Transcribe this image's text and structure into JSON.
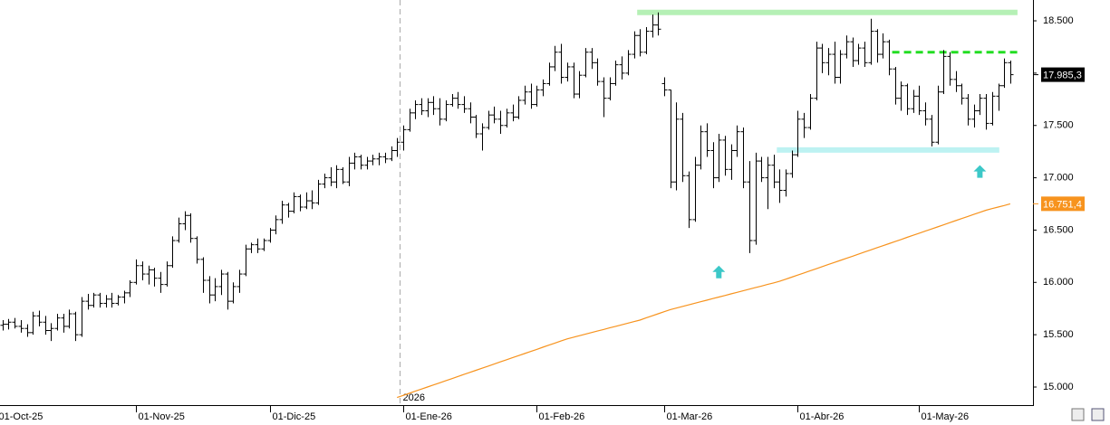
{
  "chart_data": {
    "type": "ohlc",
    "bar_color": "#000000",
    "categories": [
      "01-Oct-25",
      null,
      null,
      null,
      null,
      null,
      null,
      null,
      null,
      null,
      null,
      null,
      null,
      null,
      null,
      null,
      null,
      null,
      null,
      null,
      null,
      null,
      null,
      "01-Nov-25",
      null,
      null,
      null,
      null,
      null,
      null,
      null,
      null,
      null,
      null,
      null,
      null,
      null,
      null,
      null,
      null,
      null,
      null,
      null,
      null,
      null,
      "01-Dic-25",
      null,
      null,
      null,
      null,
      null,
      null,
      null,
      null,
      null,
      null,
      null,
      null,
      null,
      null,
      null,
      null,
      null,
      null,
      null,
      null,
      null,
      "01-Ene-26",
      null,
      null,
      null,
      null,
      null,
      null,
      null,
      null,
      null,
      null,
      null,
      null,
      null,
      null,
      null,
      null,
      null,
      null,
      null,
      null,
      null,
      "01-Feb-26",
      null,
      null,
      null,
      null,
      null,
      null,
      null,
      null,
      null,
      null,
      null,
      null,
      null,
      null,
      null,
      null,
      null,
      null,
      null,
      null,
      "01-Mar-26",
      null,
      null,
      null,
      null,
      null,
      null,
      null,
      null,
      null,
      null,
      null,
      null,
      null,
      null,
      null,
      null,
      null,
      null,
      null,
      null,
      null,
      "01-Abr-26",
      null,
      null,
      null,
      null,
      null,
      null,
      null,
      null,
      null,
      null,
      null,
      null,
      null,
      null,
      null,
      null,
      null,
      null,
      null,
      "01-May-26",
      null,
      null,
      null,
      null,
      null,
      null,
      null,
      null,
      null,
      null,
      null,
      null,
      null,
      null,
      null
    ],
    "ohlc": [
      [
        15560,
        15620,
        15510,
        15590
      ],
      [
        15590,
        15640,
        15540,
        15600
      ],
      [
        15600,
        15650,
        15550,
        15620
      ],
      [
        15620,
        15660,
        15560,
        15580
      ],
      [
        15580,
        15640,
        15520,
        15560
      ],
      [
        15560,
        15600,
        15480,
        15520
      ],
      [
        15520,
        15720,
        15500,
        15680
      ],
      [
        15680,
        15730,
        15580,
        15620
      ],
      [
        15620,
        15680,
        15500,
        15540
      ],
      [
        15540,
        15610,
        15440,
        15560
      ],
      [
        15560,
        15700,
        15540,
        15660
      ],
      [
        15660,
        15700,
        15520,
        15580
      ],
      [
        15580,
        15740,
        15560,
        15700
      ],
      [
        15700,
        15720,
        15440,
        15500
      ],
      [
        15500,
        15860,
        15480,
        15820
      ],
      [
        15820,
        15890,
        15740,
        15780
      ],
      [
        15780,
        15900,
        15760,
        15880
      ],
      [
        15880,
        15900,
        15760,
        15800
      ],
      [
        15800,
        15880,
        15760,
        15840
      ],
      [
        15840,
        15900,
        15760,
        15800
      ],
      [
        15800,
        15880,
        15780,
        15860
      ],
      [
        15860,
        15920,
        15800,
        15900
      ],
      [
        15900,
        16020,
        15860,
        16000
      ],
      [
        16000,
        16220,
        15980,
        16160
      ],
      [
        16160,
        16200,
        16020,
        16080
      ],
      [
        16080,
        16160,
        15980,
        16120
      ],
      [
        16120,
        16140,
        15960,
        16040
      ],
      [
        16040,
        16100,
        15900,
        15980
      ],
      [
        15980,
        16200,
        15960,
        16160
      ],
      [
        16160,
        16440,
        16140,
        16400
      ],
      [
        16400,
        16620,
        16380,
        16560
      ],
      [
        16560,
        16680,
        16500,
        16640
      ],
      [
        16640,
        16660,
        16380,
        16420
      ],
      [
        16420,
        16440,
        16180,
        16220
      ],
      [
        16220,
        16240,
        15900,
        16020
      ],
      [
        16020,
        16060,
        15800,
        15880
      ],
      [
        15880,
        16040,
        15820,
        15960
      ],
      [
        15960,
        16120,
        15880,
        16080
      ],
      [
        16080,
        16100,
        15740,
        15820
      ],
      [
        15820,
        16000,
        15800,
        15960
      ],
      [
        15960,
        16120,
        15900,
        16080
      ],
      [
        16080,
        16360,
        16060,
        16320
      ],
      [
        16320,
        16380,
        16280,
        16360
      ],
      [
        16360,
        16420,
        16280,
        16320
      ],
      [
        16320,
        16420,
        16300,
        16400
      ],
      [
        16400,
        16520,
        16380,
        16500
      ],
      [
        16500,
        16640,
        16460,
        16600
      ],
      [
        16600,
        16780,
        16560,
        16740
      ],
      [
        16740,
        16760,
        16620,
        16680
      ],
      [
        16680,
        16860,
        16660,
        16820
      ],
      [
        16820,
        16840,
        16680,
        16720
      ],
      [
        16720,
        16860,
        16700,
        16780
      ],
      [
        16780,
        16880,
        16700,
        16760
      ],
      [
        16760,
        16980,
        16740,
        16940
      ],
      [
        16940,
        17040,
        16900,
        17000
      ],
      [
        17000,
        17100,
        16920,
        16960
      ],
      [
        16960,
        17120,
        16900,
        17080
      ],
      [
        17080,
        17100,
        16940,
        16960
      ],
      [
        16960,
        17200,
        16920,
        17140
      ],
      [
        17140,
        17240,
        17080,
        17200
      ],
      [
        17200,
        17220,
        17080,
        17120
      ],
      [
        17120,
        17200,
        17080,
        17160
      ],
      [
        17160,
        17220,
        17120,
        17180
      ],
      [
        17180,
        17240,
        17120,
        17200
      ],
      [
        17200,
        17240,
        17140,
        17180
      ],
      [
        17180,
        17300,
        17160,
        17260
      ],
      [
        17260,
        17380,
        17200,
        17340
      ],
      [
        17340,
        17500,
        17260,
        17460
      ],
      [
        17460,
        17660,
        17440,
        17620
      ],
      [
        17620,
        17740,
        17560,
        17700
      ],
      [
        17700,
        17760,
        17600,
        17640
      ],
      [
        17640,
        17760,
        17580,
        17720
      ],
      [
        17720,
        17780,
        17600,
        17660
      ],
      [
        17660,
        17760,
        17500,
        17560
      ],
      [
        17560,
        17740,
        17540,
        17700
      ],
      [
        17700,
        17800,
        17680,
        17760
      ],
      [
        17760,
        17820,
        17660,
        17700
      ],
      [
        17700,
        17780,
        17620,
        17660
      ],
      [
        17660,
        17720,
        17520,
        17580
      ],
      [
        17580,
        17600,
        17380,
        17420
      ],
      [
        17420,
        17520,
        17260,
        17480
      ],
      [
        17480,
        17640,
        17460,
        17600
      ],
      [
        17600,
        17680,
        17520,
        17560
      ],
      [
        17560,
        17640,
        17420,
        17500
      ],
      [
        17500,
        17660,
        17480,
        17620
      ],
      [
        17620,
        17700,
        17540,
        17580
      ],
      [
        17580,
        17780,
        17560,
        17740
      ],
      [
        17740,
        17880,
        17700,
        17820
      ],
      [
        17820,
        17900,
        17660,
        17700
      ],
      [
        17700,
        17880,
        17680,
        17840
      ],
      [
        17840,
        17940,
        17780,
        17900
      ],
      [
        17900,
        18100,
        17880,
        18060
      ],
      [
        18060,
        18260,
        18020,
        18200
      ],
      [
        18200,
        18280,
        17900,
        17960
      ],
      [
        17960,
        18100,
        17920,
        18060
      ],
      [
        18060,
        18100,
        17760,
        17800
      ],
      [
        17800,
        18020,
        17760,
        17980
      ],
      [
        17980,
        18240,
        17960,
        18200
      ],
      [
        18200,
        18240,
        18040,
        18100
      ],
      [
        18100,
        18140,
        17880,
        17920
      ],
      [
        17920,
        17960,
        17580,
        17760
      ],
      [
        17760,
        17960,
        17740,
        17900
      ],
      [
        17900,
        18120,
        17880,
        18080
      ],
      [
        18080,
        18160,
        17940,
        18000
      ],
      [
        18000,
        18220,
        17980,
        18180
      ],
      [
        18180,
        18400,
        18140,
        18360
      ],
      [
        18360,
        18420,
        18160,
        18200
      ],
      [
        18200,
        18440,
        18180,
        18400
      ],
      [
        18400,
        18560,
        18340,
        18460
      ],
      [
        18460,
        18580,
        18360,
        18420
      ],
      [
        17900,
        17960,
        17780,
        17840
      ],
      [
        17840,
        17840,
        16900,
        16960
      ],
      [
        16960,
        17720,
        16880,
        17560
      ],
      [
        17560,
        17620,
        16960,
        17020
      ],
      [
        17020,
        17060,
        16520,
        16600
      ],
      [
        16600,
        17200,
        16580,
        17120
      ],
      [
        17120,
        17500,
        17080,
        17440
      ],
      [
        17440,
        17520,
        17200,
        17260
      ],
      [
        17260,
        17340,
        16900,
        17000
      ],
      [
        17000,
        17420,
        16960,
        17360
      ],
      [
        17360,
        17400,
        17020,
        17080
      ],
      [
        17080,
        17320,
        16980,
        17260
      ],
      [
        17260,
        17500,
        17200,
        17440
      ],
      [
        17440,
        17480,
        16900,
        16960
      ],
      [
        16960,
        17160,
        16280,
        16400
      ],
      [
        16400,
        17240,
        16360,
        17160
      ],
      [
        17160,
        17200,
        16960,
        17000
      ],
      [
        17000,
        17200,
        16700,
        17120
      ],
      [
        17120,
        17220,
        16900,
        16960
      ],
      [
        16960,
        17080,
        16760,
        16880
      ],
      [
        16880,
        17080,
        16820,
        17040
      ],
      [
        17040,
        17260,
        17000,
        17220
      ],
      [
        17220,
        17640,
        17200,
        17560
      ],
      [
        17560,
        17620,
        17380,
        17480
      ],
      [
        17480,
        17800,
        17460,
        17760
      ],
      [
        17760,
        18300,
        17740,
        18240
      ],
      [
        18240,
        18280,
        18000,
        18100
      ],
      [
        18100,
        18240,
        17980,
        18180
      ],
      [
        18180,
        18300,
        17900,
        17960
      ],
      [
        17960,
        18220,
        17900,
        18180
      ],
      [
        18180,
        18360,
        18140,
        18300
      ],
      [
        18300,
        18340,
        18060,
        18120
      ],
      [
        18120,
        18280,
        18080,
        18240
      ],
      [
        18240,
        18300,
        18060,
        18100
      ],
      [
        18100,
        18520,
        18080,
        18400
      ],
      [
        18400,
        18420,
        18100,
        18180
      ],
      [
        18180,
        18380,
        18140,
        18300
      ],
      [
        18300,
        18320,
        17980,
        18040
      ],
      [
        18040,
        18060,
        17700,
        17760
      ],
      [
        17760,
        17920,
        17640,
        17880
      ],
      [
        17880,
        17900,
        17600,
        17660
      ],
      [
        17660,
        17840,
        17620,
        17780
      ],
      [
        17780,
        17880,
        17600,
        17640
      ],
      [
        17640,
        17720,
        17500,
        17560
      ],
      [
        17560,
        17600,
        17300,
        17340
      ],
      [
        17340,
        17880,
        17320,
        17820
      ],
      [
        17820,
        18220,
        17800,
        18160
      ],
      [
        18160,
        18200,
        17880,
        17940
      ],
      [
        17940,
        18020,
        17820,
        17880
      ],
      [
        17880,
        17900,
        17700,
        17760
      ],
      [
        17760,
        17800,
        17500,
        17560
      ],
      [
        17560,
        17700,
        17480,
        17640
      ],
      [
        17640,
        17800,
        17600,
        17760
      ],
      [
        17760,
        17800,
        17460,
        17520
      ],
      [
        17520,
        17820,
        17500,
        17780
      ],
      [
        17780,
        17900,
        17640,
        17880
      ],
      [
        17880,
        18140,
        17860,
        18100
      ],
      [
        18100,
        18120,
        17900,
        17985.3
      ]
    ],
    "sma": {
      "color": "#f7931e",
      "values": [
        null,
        null,
        null,
        null,
        null,
        null,
        null,
        null,
        null,
        null,
        null,
        null,
        null,
        null,
        null,
        null,
        null,
        null,
        null,
        null,
        null,
        null,
        null,
        null,
        null,
        null,
        null,
        null,
        null,
        null,
        null,
        null,
        null,
        null,
        null,
        null,
        null,
        null,
        null,
        null,
        null,
        null,
        null,
        null,
        null,
        null,
        null,
        null,
        null,
        null,
        null,
        null,
        null,
        null,
        null,
        null,
        null,
        null,
        null,
        null,
        null,
        null,
        null,
        null,
        null,
        null,
        14900,
        14920,
        14940,
        14960,
        14980,
        15000,
        15020,
        15040,
        15060,
        15080,
        15100,
        15120,
        15140,
        15160,
        15180,
        15200,
        15220,
        15240,
        15260,
        15280,
        15300,
        15320,
        15340,
        15360,
        15380,
        15400,
        15420,
        15440,
        15460,
        15475,
        15490,
        15505,
        15520,
        15535,
        15550,
        15565,
        15580,
        15595,
        15610,
        15625,
        15640,
        15660,
        15680,
        15700,
        15720,
        15740,
        15755,
        15770,
        15785,
        15800,
        15815,
        15830,
        15845,
        15860,
        15875,
        15890,
        15905,
        15920,
        15935,
        15950,
        15965,
        15980,
        15995,
        16010,
        16030,
        16050,
        16070,
        16090,
        16110,
        16130,
        16150,
        16170,
        16190,
        16210,
        16230,
        16250,
        16270,
        16290,
        16310,
        16330,
        16350,
        16370,
        16390,
        16410,
        16430,
        16450,
        16470,
        16490,
        16510,
        16530,
        16550,
        16570,
        16590,
        16610,
        16630,
        16650,
        16670,
        16690,
        16705,
        16720,
        16735,
        16751.4
      ]
    },
    "price_tags": [
      {
        "value": 17985.3,
        "label": "17.985,3",
        "color": "#000000"
      },
      {
        "value": 16751.4,
        "label": "16.751,4",
        "color": "#f7931e"
      }
    ],
    "levels": [
      {
        "value": 18580,
        "from": 106,
        "to": 167,
        "color": "#b5f0b5",
        "style": "band"
      },
      {
        "value": 18200,
        "from": 148,
        "to": 167,
        "color": "#22dd22",
        "style": "dashed"
      },
      {
        "value": 17265,
        "from": 129,
        "to": 164,
        "color": "#bdf2f2",
        "style": "band"
      }
    ],
    "arrows": [
      {
        "index": 119,
        "value": 16100,
        "color": "#3cc8c8"
      },
      {
        "index": 162,
        "value": 17060,
        "color": "#3cc8c8"
      }
    ],
    "year_separator": {
      "index": 67,
      "label": "2026"
    },
    "ylim": [
      14810,
      18699
    ],
    "yticks": [
      {
        "value": 15000,
        "label": "15.000"
      },
      {
        "value": 15500,
        "label": "15.500"
      },
      {
        "value": 16000,
        "label": "16.000"
      },
      {
        "value": 16500,
        "label": "16.500"
      },
      {
        "value": 17000,
        "label": "17.000"
      },
      {
        "value": 17500,
        "label": "17.500"
      },
      {
        "value": 18000,
        "label": "18.000"
      },
      {
        "value": 18500,
        "label": "18.500"
      }
    ],
    "grid": false
  }
}
